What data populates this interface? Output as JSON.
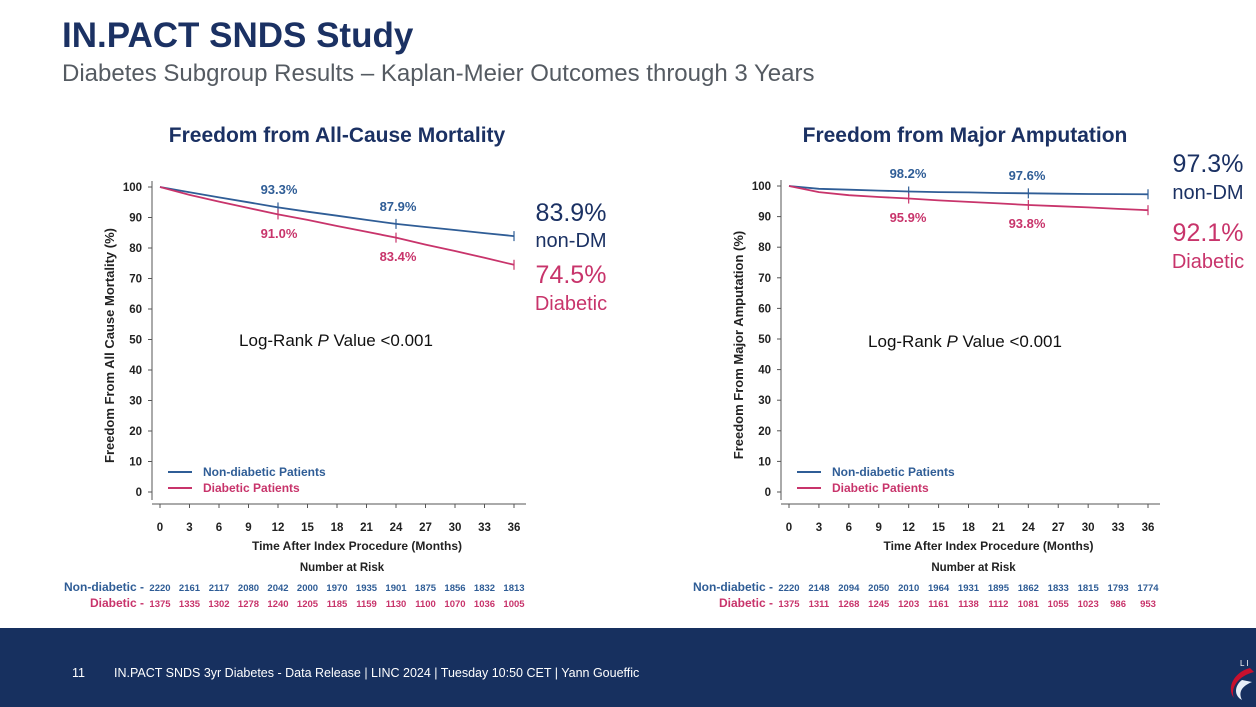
{
  "slide": {
    "title": "IN.PACT SNDS Study",
    "subtitle": "Diabetes Subgroup Results – Kaplan-Meier Outcomes through 3 Years"
  },
  "footer": {
    "page_number": "11",
    "text": "IN.PACT SNDS 3yr Diabetes - Data Release  |  LINC 2024  |  Tuesday 10:50 CET  |  Yann Goueffic"
  },
  "colors": {
    "navy": "#1b3163",
    "non_dm": "#2f5d96",
    "diabetic": "#c8346b",
    "footer_bg": "#17305f"
  },
  "chart_data": [
    {
      "type": "line",
      "title": "Freedom from All-Cause Mortality",
      "ylabel": "Freedom From All Cause Mortality (%)",
      "xlabel": "Time After Index Procedure (Months)",
      "ylim": [
        0,
        100
      ],
      "yticks": [
        0,
        10,
        20,
        30,
        40,
        50,
        60,
        70,
        80,
        90,
        100
      ],
      "xticks": [
        0,
        3,
        6,
        9,
        12,
        15,
        18,
        21,
        24,
        27,
        30,
        33,
        36
      ],
      "series": [
        {
          "name": "Non-diabetic Patients",
          "x": [
            0,
            3,
            6,
            9,
            12,
            15,
            18,
            21,
            24,
            27,
            30,
            33,
            36
          ],
          "y": [
            100,
            98.3,
            96.6,
            95,
            93.3,
            91.9,
            90.6,
            89.2,
            87.9,
            86.9,
            85.9,
            84.9,
            83.9
          ]
        },
        {
          "name": "Diabetic Patients",
          "x": [
            0,
            3,
            6,
            9,
            12,
            15,
            18,
            21,
            24,
            27,
            30,
            33,
            36
          ],
          "y": [
            100,
            97.4,
            95.2,
            93.1,
            91.0,
            89.2,
            87.2,
            85.3,
            83.4,
            81.1,
            79.0,
            76.8,
            74.5
          ]
        }
      ],
      "annotations": {
        "non_dm_12": "93.3%",
        "non_dm_24": "87.9%",
        "diabetic_12": "91.0%",
        "diabetic_24": "83.4%",
        "final_non_dm_value": "83.9%",
        "final_non_dm_label": "non-DM",
        "final_diabetic_value": "74.5%",
        "final_diabetic_label": "Diabetic",
        "logrank_prefix": "Log-Rank ",
        "logrank_p": "P",
        "logrank_suffix": " Value <0.001"
      },
      "number_at_risk": {
        "title": "Number at Risk",
        "rows": [
          {
            "label": "Non-diabetic -",
            "values": [
              "2220",
              "2161",
              "2117",
              "2080",
              "2042",
              "2000",
              "1970",
              "1935",
              "1901",
              "1875",
              "1856",
              "1832",
              "1813"
            ]
          },
          {
            "label": "Diabetic -",
            "values": [
              "1375",
              "1335",
              "1302",
              "1278",
              "1240",
              "1205",
              "1185",
              "1159",
              "1130",
              "1100",
              "1070",
              "1036",
              "1005"
            ]
          }
        ]
      }
    },
    {
      "type": "line",
      "title": "Freedom from Major Amputation",
      "ylabel": "Freedom From Major Amputation (%)",
      "xlabel": "Time After Index Procedure (Months)",
      "ylim": [
        0,
        100
      ],
      "yticks": [
        0,
        10,
        20,
        30,
        40,
        50,
        60,
        70,
        80,
        90,
        100
      ],
      "xticks": [
        0,
        3,
        6,
        9,
        12,
        15,
        18,
        21,
        24,
        27,
        30,
        33,
        36
      ],
      "series": [
        {
          "name": "Non-diabetic Patients",
          "x": [
            0,
            3,
            6,
            9,
            12,
            15,
            18,
            21,
            24,
            27,
            30,
            33,
            36
          ],
          "y": [
            100,
            99.1,
            98.8,
            98.5,
            98.2,
            98.0,
            97.9,
            97.7,
            97.6,
            97.5,
            97.4,
            97.35,
            97.3
          ]
        },
        {
          "name": "Diabetic Patients",
          "x": [
            0,
            3,
            6,
            9,
            12,
            15,
            18,
            21,
            24,
            27,
            30,
            33,
            36
          ],
          "y": [
            100,
            98.0,
            97.0,
            96.4,
            95.9,
            95.3,
            94.8,
            94.3,
            93.8,
            93.4,
            93.0,
            92.5,
            92.1
          ]
        }
      ],
      "annotations": {
        "non_dm_12": "98.2%",
        "non_dm_24": "97.6%",
        "diabetic_12": "95.9%",
        "diabetic_24": "93.8%",
        "final_non_dm_value": "97.3%",
        "final_non_dm_label": "non-DM",
        "final_diabetic_value": "92.1%",
        "final_diabetic_label": "Diabetic",
        "logrank_prefix": "Log-Rank ",
        "logrank_p": "P",
        "logrank_suffix": " Value <0.001"
      },
      "number_at_risk": {
        "title": "Number at Risk",
        "rows": [
          {
            "label": "Non-diabetic -",
            "values": [
              "2220",
              "2148",
              "2094",
              "2050",
              "2010",
              "1964",
              "1931",
              "1895",
              "1862",
              "1833",
              "1815",
              "1793",
              "1774"
            ]
          },
          {
            "label": "Diabetic -",
            "values": [
              "1375",
              "1311",
              "1268",
              "1245",
              "1203",
              "1161",
              "1138",
              "1112",
              "1081",
              "1055",
              "1023",
              "986",
              "953"
            ]
          }
        ]
      }
    }
  ]
}
